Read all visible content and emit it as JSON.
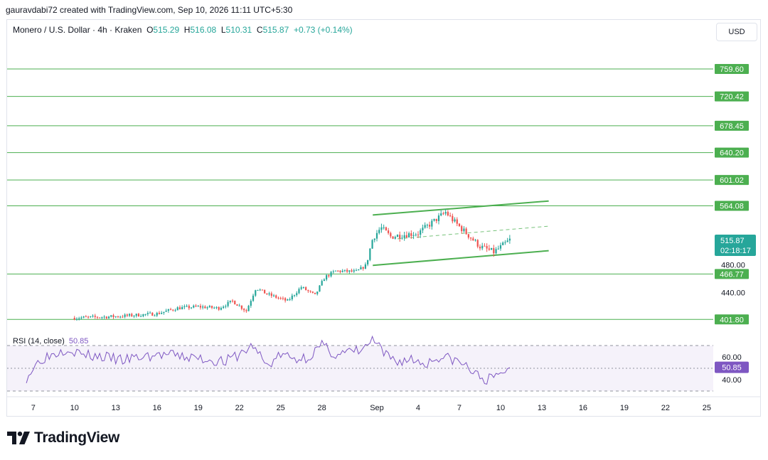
{
  "header": {
    "credit": "gauravdabi72 created with TradingView.com, Sep 10, 2026 11:11 UTC+5:30"
  },
  "legend": {
    "symbol": "Monero / U.S. Dollar · 4h · Kraken",
    "o_label": "O",
    "o": "515.29",
    "h_label": "H",
    "h": "516.08",
    "l_label": "L",
    "l": "510.31",
    "c_label": "C",
    "c": "515.87",
    "change": "+0.73 (+0.14%)"
  },
  "currency_button": "USD",
  "rsi_legend": {
    "label": "RSI (14, close)",
    "value": "50.85"
  },
  "brand": {
    "name": "TradingView"
  },
  "colors": {
    "up": "#26a69a",
    "down": "#ef5350",
    "level": "#4caf50",
    "channel": "#4caf50",
    "rsi": "#7e57c2"
  },
  "chart_data": {
    "type": "candlestick",
    "title": "Monero / U.S. Dollar · 4h · Kraken",
    "x_ticks": [
      "7",
      "10",
      "13",
      "16",
      "19",
      "22",
      "25",
      "28",
      "Sep",
      "4",
      "7",
      "10",
      "13",
      "16",
      "19",
      "22",
      "25"
    ],
    "x_tick_days": [
      -25,
      -22,
      -19,
      -16,
      -13,
      -10,
      -7,
      -4,
      0,
      3,
      6,
      9,
      12,
      15,
      18,
      21,
      24
    ],
    "y_range": [
      396,
      785
    ],
    "horizontal_levels": [
      759.6,
      720.42,
      678.45,
      640.2,
      601.02,
      564.08,
      466.77,
      401.8
    ],
    "level_labels": [
      "759.60",
      "720.42",
      "678.45",
      "640.20",
      "601.02",
      "564.08",
      "466.77",
      "401.80"
    ],
    "price_axis_ticks": [
      "480.00",
      "440.00"
    ],
    "price_axis_tick_values": [
      480,
      440
    ],
    "current_price": {
      "value": 515.87,
      "label": "515.87",
      "countdown": "02:18:17"
    },
    "channel": {
      "upper": [
        {
          "day": -0.3,
          "price": 551
        },
        {
          "day": 12.5,
          "price": 571
        }
      ],
      "lower": [
        {
          "day": -0.3,
          "price": 479
        },
        {
          "day": 12.5,
          "price": 500
        }
      ],
      "mid_dashed": [
        {
          "day": 1.5,
          "price": 517
        },
        {
          "day": 12.5,
          "price": 535
        }
      ]
    },
    "price_path": [
      {
        "day": -22.0,
        "price": 404
      },
      {
        "day": -19.0,
        "price": 406
      },
      {
        "day": -16.0,
        "price": 410
      },
      {
        "day": -14.5,
        "price": 418
      },
      {
        "day": -13.0,
        "price": 420
      },
      {
        "day": -11.5,
        "price": 418
      },
      {
        "day": -10.5,
        "price": 428
      },
      {
        "day": -9.5,
        "price": 414
      },
      {
        "day": -8.8,
        "price": 447
      },
      {
        "day": -8.0,
        "price": 438
      },
      {
        "day": -6.5,
        "price": 428
      },
      {
        "day": -5.5,
        "price": 448
      },
      {
        "day": -4.5,
        "price": 436
      },
      {
        "day": -3.8,
        "price": 462
      },
      {
        "day": -3.0,
        "price": 471
      },
      {
        "day": -1.5,
        "price": 470
      },
      {
        "day": -0.8,
        "price": 479
      },
      {
        "day": -0.3,
        "price": 518
      },
      {
        "day": 0.3,
        "price": 533
      },
      {
        "day": 1.0,
        "price": 520
      },
      {
        "day": 2.0,
        "price": 523
      },
      {
        "day": 3.0,
        "price": 525
      },
      {
        "day": 4.0,
        "price": 540
      },
      {
        "day": 5.0,
        "price": 555
      },
      {
        "day": 5.6,
        "price": 542
      },
      {
        "day": 6.5,
        "price": 525
      },
      {
        "day": 7.5,
        "price": 506
      },
      {
        "day": 8.5,
        "price": 498
      },
      {
        "day": 9.0,
        "price": 505
      },
      {
        "day": 9.7,
        "price": 515.87
      }
    ],
    "rsi": {
      "name": "RSI (14, close)",
      "levels": [
        70,
        50,
        30
      ],
      "level_labels": [
        "60.00",
        "40.00"
      ],
      "level_label_values": [
        60,
        40
      ],
      "last": 50.85,
      "last_label": "50.85",
      "path": [
        {
          "day": -25.5,
          "value": 42
        },
        {
          "day": -24.5,
          "value": 58
        },
        {
          "day": -23.5,
          "value": 63
        },
        {
          "day": -22.5,
          "value": 68
        },
        {
          "day": -21.5,
          "value": 62
        },
        {
          "day": -20.0,
          "value": 60
        },
        {
          "day": -18.5,
          "value": 57
        },
        {
          "day": -17.0,
          "value": 60
        },
        {
          "day": -15.5,
          "value": 62
        },
        {
          "day": -14.0,
          "value": 60
        },
        {
          "day": -12.5,
          "value": 58
        },
        {
          "day": -11.0,
          "value": 56
        },
        {
          "day": -10.0,
          "value": 62
        },
        {
          "day": -9.0,
          "value": 70
        },
        {
          "day": -8.0,
          "value": 52
        },
        {
          "day": -7.0,
          "value": 62
        },
        {
          "day": -6.0,
          "value": 58
        },
        {
          "day": -5.0,
          "value": 60
        },
        {
          "day": -4.0,
          "value": 70
        },
        {
          "day": -3.0,
          "value": 62
        },
        {
          "day": -2.0,
          "value": 64
        },
        {
          "day": -1.0,
          "value": 66
        },
        {
          "day": -0.3,
          "value": 76
        },
        {
          "day": 0.5,
          "value": 62
        },
        {
          "day": 1.5,
          "value": 56
        },
        {
          "day": 2.5,
          "value": 58
        },
        {
          "day": 3.5,
          "value": 54
        },
        {
          "day": 4.5,
          "value": 60
        },
        {
          "day": 5.5,
          "value": 58
        },
        {
          "day": 6.5,
          "value": 52
        },
        {
          "day": 7.2,
          "value": 44
        },
        {
          "day": 8.0,
          "value": 40
        },
        {
          "day": 8.7,
          "value": 42
        },
        {
          "day": 9.2,
          "value": 48
        },
        {
          "day": 9.7,
          "value": 50.85
        }
      ]
    }
  }
}
